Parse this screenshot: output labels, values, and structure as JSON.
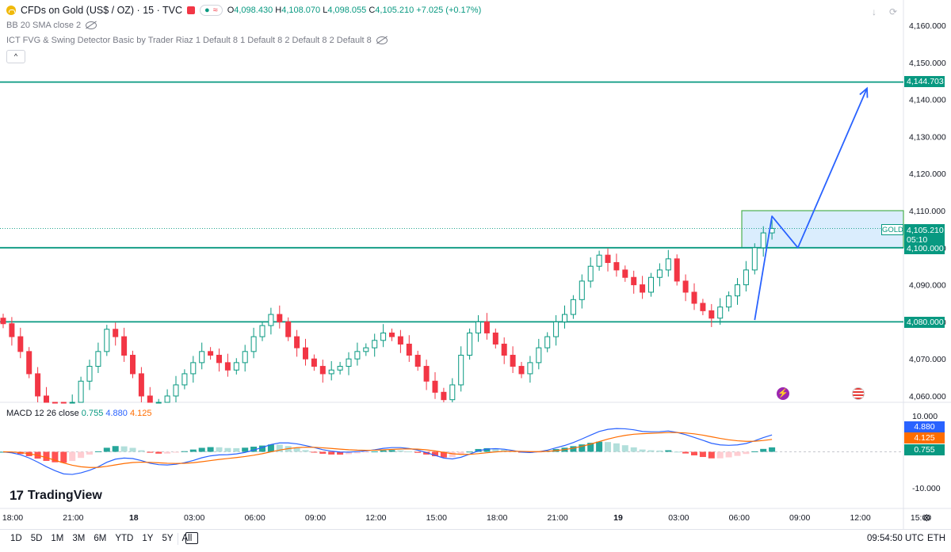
{
  "header": {
    "symbol": "CFDs on Gold (US$ / OZ) · 15 · TVC",
    "pill_left": "●",
    "pill_right": "≈",
    "ohlc": [
      {
        "k": "O",
        "v": "4,098.430"
      },
      {
        "k": "H",
        "v": "4,108.070"
      },
      {
        "k": "L",
        "v": "4,098.055"
      },
      {
        "k": "C",
        "v": "4,105.210"
      }
    ],
    "change": "+7.025 (+0.17%)"
  },
  "indicators": {
    "bb": "BB 20 SMA close 2",
    "ict": "ICT FVG & Swing Detector Basic by Trader Riaz 1 Default 8 1 Default 8 2 Default 8 2 Default 8",
    "collapse": "^"
  },
  "top_right_icons": [
    "download-icon",
    "refresh-icon"
  ],
  "colors": {
    "up": "#089981",
    "down": "#f23645",
    "level": "#089981",
    "zone_border": "#4caf50",
    "zone_fill": "#bbdefb",
    "projection": "#2962ff",
    "macd_line": "#2962ff",
    "signal_line": "#ff6d00"
  },
  "chart_data": {
    "type": "candlestick",
    "symbol": "GOLD",
    "interval": "15",
    "price_axis": {
      "range": [
        4056,
        4166
      ],
      "ticks": [
        "4,160.000",
        "4,150.000",
        "4,140.000",
        "4,130.000",
        "4,120.000",
        "4,110.000",
        "4,100.000",
        "4,090.000",
        "4,080.000",
        "4,070.000",
        "4,060.000"
      ]
    },
    "time_axis": {
      "labels": [
        "18:00",
        "21:00",
        "18",
        "03:00",
        "06:00",
        "09:00",
        "12:00",
        "15:00",
        "18:00",
        "21:00",
        "19",
        "03:00",
        "06:00",
        "09:00",
        "12:00",
        "15:00"
      ]
    },
    "candle_closes": [
      4079.5,
      4076,
      4072,
      4066,
      4060,
      4055,
      4053,
      4052,
      4058,
      4064,
      4068,
      4072,
      4078,
      4076,
      4071,
      4066,
      4060,
      4056,
      4058,
      4060,
      4063,
      4066,
      4069,
      4072,
      4071,
      4069,
      4067,
      4069,
      4072,
      4076,
      4079,
      4082,
      4080,
      4076,
      4073,
      4070,
      4068,
      4066,
      4067,
      4068,
      4070,
      4072,
      4073,
      4075,
      4077,
      4076,
      4074,
      4071,
      4068,
      4064,
      4061,
      4059,
      4063,
      4071,
      4077,
      4080,
      4077,
      4074,
      4071,
      4068,
      4066,
      4069,
      4073,
      4076,
      4080,
      4082,
      4086,
      4091,
      4095,
      4098,
      4096,
      4094,
      4092,
      4090,
      4088,
      4092,
      4094,
      4097,
      4091,
      4088,
      4085,
      4083,
      4081,
      4084,
      4087,
      4090,
      4094,
      4100,
      4104,
      4105.21
    ],
    "levels": [
      {
        "label": "4,144.703",
        "value": 4144.703
      },
      {
        "label": "4,100.000",
        "value": 4100.0
      },
      {
        "label": "4,080.000",
        "value": 4080.0
      }
    ],
    "zone": {
      "low": 4100.0,
      "high": 4110.0
    },
    "projection_path": [
      {
        "time_index": 87,
        "value": 4080.5
      },
      {
        "time_index": 89,
        "value": 4108.5
      },
      {
        "time_index": 92,
        "value": 4100.0
      },
      {
        "time_index": 100,
        "value": 4143
      }
    ],
    "current_price": {
      "symbol": "GOLD",
      "price": "4,105.210",
      "countdown": "05:10",
      "value": 4105.21
    },
    "macd": {
      "title": "MACD 12 26 close",
      "values": {
        "histogram": "0.755",
        "macd": "4.880",
        "signal": "4.125"
      },
      "axis_ticks": [
        "10.000",
        "-10.000"
      ],
      "range": [
        -12,
        12
      ]
    }
  },
  "events": [
    "lightning-event-icon",
    "us-flag-event-icon"
  ],
  "bottom_bar": {
    "timeframes": [
      "1D",
      "5D",
      "1M",
      "3M",
      "6M",
      "YTD",
      "1Y",
      "5Y",
      "All"
    ],
    "clock": "09:54:50 UTC",
    "session": "ETH"
  },
  "brand": {
    "mark": "17",
    "name": "TradingView"
  }
}
